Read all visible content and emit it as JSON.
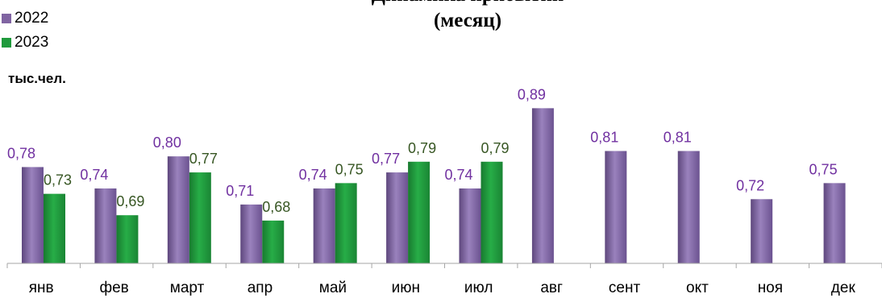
{
  "chart_data": {
    "type": "bar",
    "title": "Динамика прибытий\n(месяц)",
    "unit_label": "тыс.чел.",
    "categories": [
      "янв",
      "фев",
      "март",
      "апр",
      "май",
      "июн",
      "июл",
      "авг",
      "сент",
      "окт",
      "ноя",
      "дек"
    ],
    "series": [
      {
        "name": "2022",
        "color": "#8064a2",
        "label_color": "#7030a0",
        "values": [
          0.78,
          0.74,
          0.8,
          0.71,
          0.74,
          0.77,
          0.74,
          0.89,
          0.81,
          0.81,
          0.72,
          0.75
        ],
        "labels": [
          "0,78",
          "0,74",
          "0,80",
          "0,71",
          "0,74",
          "0,77",
          "0,74",
          "0,89",
          "0,81",
          "0,81",
          "0,72",
          "0,75"
        ]
      },
      {
        "name": "2023",
        "color": "#1f9a3c",
        "label_color": "#375623",
        "values": [
          0.73,
          0.69,
          0.77,
          0.68,
          0.75,
          0.79,
          0.79,
          null,
          null,
          null,
          null,
          null
        ],
        "labels": [
          "0,73",
          "0,69",
          "0,77",
          "0,68",
          "0,75",
          "0,79",
          "0,79",
          null,
          null,
          null,
          null,
          null
        ]
      }
    ],
    "ylim": [
      0.6,
      0.9
    ],
    "grid": false,
    "legend_position": "top-left"
  }
}
